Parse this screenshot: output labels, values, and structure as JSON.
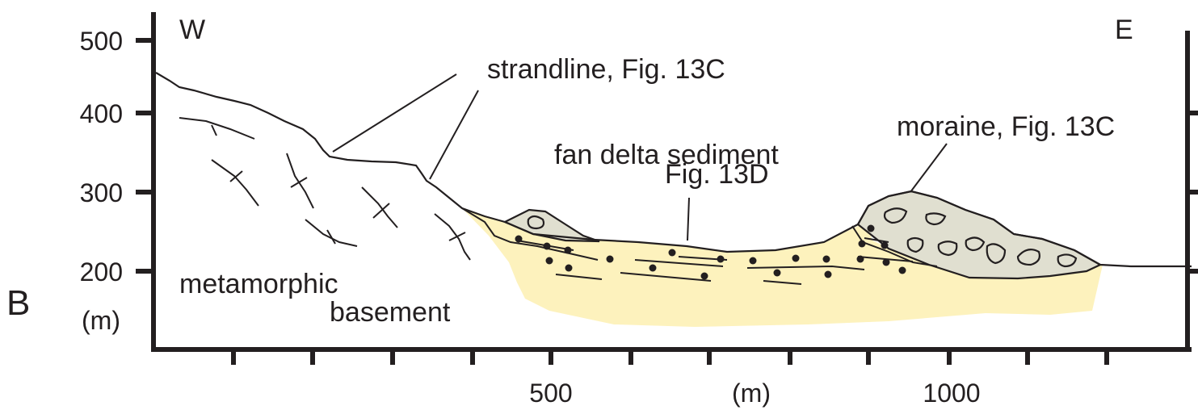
{
  "panel_label": "B",
  "compass": {
    "west": "W",
    "east": "E"
  },
  "y_axis": {
    "unit": "(m)",
    "ticks": [
      {
        "label": "500",
        "value": 500
      },
      {
        "label": "400",
        "value": 400
      },
      {
        "label": "300",
        "value": 300
      },
      {
        "label": "200",
        "value": 200
      }
    ]
  },
  "x_axis": {
    "unit": "(m)",
    "ticks": [
      {
        "label": "500",
        "value": 500
      },
      {
        "label": "1000",
        "value": 1000
      }
    ]
  },
  "annotations": {
    "strandline": "strandline, Fig. 13C",
    "fan_delta_line1": "fan delta sediment",
    "fan_delta_line2": "Fig. 13D",
    "moraine": "moraine, Fig. 13C",
    "basement_line1": "metamorphic",
    "basement_line2": "basement"
  },
  "colors": {
    "outline": "#231f20",
    "fan_delta_sediment": "#fdf2bd",
    "moraine": "#e0dfd0"
  }
}
